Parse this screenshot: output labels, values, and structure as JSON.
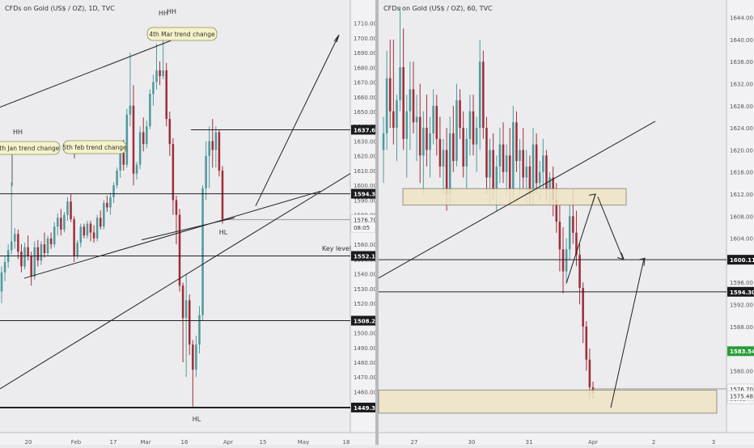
{
  "chart_data": [
    {
      "type": "candlestick",
      "title": "CFDs on Gold (US$ / OZ), 1D, TVC",
      "ylim": [
        1446,
        1718
      ],
      "y_ticks": [
        "1710.00",
        "1700.00",
        "1690.00",
        "1680.00",
        "1670.00",
        "1660.00",
        "1650.00",
        "1640.00",
        "1630.00",
        "1620.00",
        "1610.00",
        "1600.00",
        "1590.00",
        "1580.00",
        "1570.00",
        "1560.00",
        "1550.00",
        "1540.00",
        "1530.00",
        "1520.00",
        "1510.00",
        "1500.00",
        "1490.00",
        "1480.00",
        "1470.00",
        "1460.00",
        "1450.00"
      ],
      "x_ticks": [
        "20",
        "Feb",
        "17",
        "Mar",
        "16",
        "Apr",
        "15",
        "May",
        "18"
      ],
      "price_labels": [
        {
          "text": "1637.69",
          "value": 1637.69,
          "style": "dark"
        },
        {
          "text": "1594.30",
          "value": 1594.3,
          "style": "dark"
        },
        {
          "text": "1576.70",
          "value": 1576.7,
          "style": "light"
        },
        {
          "text": "08:05",
          "value": 1571.5,
          "style": "light"
        },
        {
          "text": "1552.11",
          "value": 1552.11,
          "style": "dark"
        },
        {
          "text": "1508.22",
          "value": 1508.22,
          "style": "dark"
        },
        {
          "text": "1449.32",
          "value": 1449.32,
          "style": "dark"
        }
      ],
      "annotations": {
        "hh_left": "HH",
        "hh_top_1": "HH",
        "hh_top_2": "HH",
        "hl_mid": "HL",
        "hl_bottom": "HL",
        "key_level": "Key level",
        "callout_jan": "8th Jan trend change",
        "callout_feb": "5th feb trend change",
        "callout_mar": "4th Mar trend change"
      },
      "candles": [
        [
          1528,
          1545,
          1520,
          1541
        ],
        [
          1541,
          1552,
          1535,
          1548
        ],
        [
          1548,
          1560,
          1544,
          1556
        ],
        [
          1556,
          1602,
          1553,
          1562
        ],
        [
          1562,
          1571,
          1557,
          1567
        ],
        [
          1567,
          1570,
          1550,
          1555
        ],
        [
          1555,
          1560,
          1541,
          1545
        ],
        [
          1545,
          1561,
          1543,
          1558
        ],
        [
          1558,
          1566,
          1549,
          1552
        ],
        [
          1552,
          1555,
          1532,
          1538
        ],
        [
          1538,
          1562,
          1536,
          1558
        ],
        [
          1558,
          1563,
          1545,
          1549
        ],
        [
          1549,
          1562,
          1546,
          1560
        ],
        [
          1560,
          1568,
          1551,
          1554
        ],
        [
          1554,
          1566,
          1552,
          1564
        ],
        [
          1564,
          1568,
          1557,
          1560
        ],
        [
          1560,
          1575,
          1558,
          1572
        ],
        [
          1572,
          1581,
          1566,
          1578
        ],
        [
          1578,
          1584,
          1566,
          1570
        ],
        [
          1570,
          1582,
          1568,
          1580
        ],
        [
          1580,
          1592,
          1576,
          1589
        ],
        [
          1589,
          1594,
          1575,
          1577
        ],
        [
          1577,
          1579,
          1548,
          1552
        ],
        [
          1552,
          1563,
          1550,
          1561
        ],
        [
          1561,
          1574,
          1558,
          1572
        ],
        [
          1572,
          1574,
          1564,
          1566
        ],
        [
          1566,
          1576,
          1564,
          1574
        ],
        [
          1574,
          1576,
          1562,
          1568
        ],
        [
          1568,
          1573,
          1561,
          1564
        ],
        [
          1564,
          1580,
          1562,
          1578
        ],
        [
          1578,
          1583,
          1570,
          1572
        ],
        [
          1572,
          1590,
          1570,
          1588
        ],
        [
          1588,
          1593,
          1582,
          1585
        ],
        [
          1585,
          1595,
          1580,
          1592
        ],
        [
          1592,
          1602,
          1588,
          1600
        ],
        [
          1600,
          1612,
          1598,
          1610
        ],
        [
          1610,
          1625,
          1605,
          1622
        ],
        [
          1622,
          1631,
          1610,
          1614
        ],
        [
          1614,
          1652,
          1612,
          1648
        ],
        [
          1648,
          1690,
          1640,
          1654
        ],
        [
          1654,
          1668,
          1600,
          1608
        ],
        [
          1608,
          1616,
          1604,
          1614
        ],
        [
          1614,
          1640,
          1611,
          1636
        ],
        [
          1636,
          1646,
          1623,
          1628
        ],
        [
          1628,
          1644,
          1625,
          1640
        ],
        [
          1640,
          1665,
          1638,
          1662
        ],
        [
          1662,
          1675,
          1654,
          1670
        ],
        [
          1670,
          1696,
          1665,
          1678
        ],
        [
          1678,
          1684,
          1668,
          1674
        ],
        [
          1674,
          1704,
          1672,
          1678
        ],
        [
          1678,
          1683,
          1640,
          1645
        ],
        [
          1645,
          1650,
          1620,
          1628
        ],
        [
          1628,
          1632,
          1580,
          1590
        ],
        [
          1590,
          1593,
          1560,
          1580
        ],
        [
          1580,
          1584,
          1528,
          1532
        ],
        [
          1532,
          1534,
          1480,
          1510
        ],
        [
          1510,
          1540,
          1470,
          1522
        ],
        [
          1522,
          1526,
          1485,
          1492
        ],
        [
          1492,
          1495,
          1450,
          1475
        ],
        [
          1475,
          1498,
          1470,
          1492
        ],
        [
          1492,
          1518,
          1486,
          1512
        ],
        [
          1512,
          1600,
          1508,
          1598
        ],
        [
          1598,
          1630,
          1590,
          1620
        ],
        [
          1620,
          1640,
          1598,
          1630
        ],
        [
          1630,
          1645,
          1612,
          1624
        ],
        [
          1624,
          1640,
          1612,
          1636
        ],
        [
          1636,
          1638,
          1606,
          1610
        ],
        [
          1610,
          1613,
          1574,
          1577
        ]
      ]
    },
    {
      "type": "candlestick",
      "title": "CFDs on Gold (US$ / OZ), 60, TVC",
      "ylim": [
        1572,
        1646
      ],
      "y_ticks": [
        "1644.00",
        "1640.00",
        "1636.00",
        "1632.00",
        "1628.00",
        "1624.00",
        "1620.00",
        "1616.00",
        "1612.00",
        "1608.00",
        "1604.00",
        "1600.00",
        "1596.00",
        "1592.00",
        "1588.00",
        "1584.00",
        "1580.00",
        "1576.00"
      ],
      "x_ticks": [
        "27",
        "30",
        "31",
        "Apr",
        "2",
        "3"
      ],
      "price_labels": [
        {
          "text": "1600.11",
          "value": 1600.11,
          "style": "dark"
        },
        {
          "text": "1594.30",
          "value": 1594.3,
          "style": "dark"
        },
        {
          "text": "1583.54",
          "value": 1583.54,
          "style": "green"
        },
        {
          "text": "1576.70",
          "value": 1576.7,
          "style": "light"
        },
        {
          "text": "08:05",
          "value": 1574.9,
          "style": "light"
        },
        {
          "text": "1575.49",
          "value": 1575.49,
          "style": "red"
        },
        {
          "text": "1575.48",
          "value": 1575.48,
          "style": "light"
        }
      ],
      "candles": [
        [
          1620,
          1626,
          1614,
          1623
        ],
        [
          1623,
          1638,
          1620,
          1633
        ],
        [
          1633,
          1640,
          1624,
          1627
        ],
        [
          1627,
          1640,
          1621,
          1624
        ],
        [
          1624,
          1630,
          1618,
          1629
        ],
        [
          1629,
          1646,
          1627,
          1635
        ],
        [
          1635,
          1642,
          1620,
          1622
        ],
        [
          1622,
          1630,
          1615,
          1627
        ],
        [
          1627,
          1636,
          1620,
          1631
        ],
        [
          1631,
          1636,
          1623,
          1625
        ],
        [
          1625,
          1630,
          1618,
          1626
        ],
        [
          1626,
          1632,
          1614,
          1619
        ],
        [
          1619,
          1627,
          1612,
          1624
        ],
        [
          1624,
          1630,
          1617,
          1620
        ],
        [
          1620,
          1626,
          1615,
          1623
        ],
        [
          1623,
          1631,
          1621,
          1628
        ],
        [
          1628,
          1630,
          1619,
          1622
        ],
        [
          1622,
          1626,
          1615,
          1617
        ],
        [
          1617,
          1622,
          1612,
          1620
        ],
        [
          1620,
          1624,
          1609,
          1612
        ],
        [
          1612,
          1626,
          1610,
          1623
        ],
        [
          1623,
          1628,
          1616,
          1618
        ],
        [
          1618,
          1632,
          1617,
          1629
        ],
        [
          1629,
          1631,
          1622,
          1624
        ],
        [
          1624,
          1627,
          1615,
          1617
        ],
        [
          1617,
          1624,
          1613,
          1622
        ],
        [
          1622,
          1630,
          1619,
          1627
        ],
        [
          1627,
          1630,
          1619,
          1621
        ],
        [
          1621,
          1626,
          1616,
          1624
        ],
        [
          1624,
          1640,
          1620,
          1636
        ],
        [
          1636,
          1638,
          1622,
          1624
        ],
        [
          1624,
          1626,
          1612,
          1615
        ],
        [
          1615,
          1622,
          1610,
          1620
        ],
        [
          1620,
          1623,
          1611,
          1613
        ],
        [
          1613,
          1619,
          1609,
          1617
        ],
        [
          1617,
          1624,
          1614,
          1621
        ],
        [
          1621,
          1625,
          1614,
          1616
        ],
        [
          1616,
          1621,
          1612,
          1619
        ],
        [
          1619,
          1624,
          1610,
          1613
        ],
        [
          1613,
          1628,
          1611,
          1625
        ],
        [
          1625,
          1627,
          1616,
          1618
        ],
        [
          1618,
          1622,
          1612,
          1620
        ],
        [
          1620,
          1624,
          1613,
          1615
        ],
        [
          1615,
          1620,
          1610,
          1617
        ],
        [
          1617,
          1619,
          1610,
          1612
        ],
        [
          1612,
          1624,
          1610,
          1621
        ],
        [
          1621,
          1623,
          1612,
          1614
        ],
        [
          1614,
          1618,
          1611,
          1616
        ],
        [
          1616,
          1622,
          1613,
          1619
        ],
        [
          1619,
          1620,
          1611,
          1613
        ],
        [
          1613,
          1616,
          1610,
          1615
        ],
        [
          1615,
          1617,
          1608,
          1611
        ],
        [
          1611,
          1614,
          1605,
          1607
        ],
        [
          1607,
          1610,
          1598,
          1602
        ],
        [
          1602,
          1606,
          1594,
          1598
        ],
        [
          1598,
          1604,
          1596,
          1602
        ],
        [
          1602,
          1610,
          1600,
          1608
        ],
        [
          1608,
          1613,
          1603,
          1605
        ],
        [
          1605,
          1609,
          1599,
          1601
        ],
        [
          1601,
          1603,
          1592,
          1595
        ],
        [
          1595,
          1596,
          1585,
          1588
        ],
        [
          1588,
          1589,
          1580,
          1582
        ],
        [
          1582,
          1584,
          1575,
          1577
        ],
        [
          1577,
          1578,
          1575,
          1576
        ]
      ]
    }
  ]
}
